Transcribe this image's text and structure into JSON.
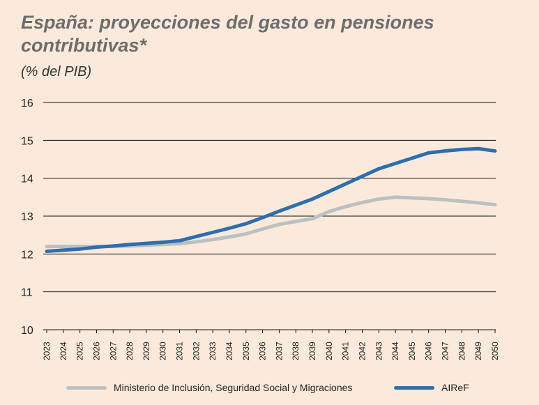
{
  "chart_data": {
    "type": "line",
    "title": "España: proyecciones del gasto en pensiones contributivas*",
    "subtitle": "(% del PIB)",
    "xlabel": "",
    "ylabel": "",
    "ylim": [
      10,
      16
    ],
    "yticks": [
      "10",
      "11",
      "12",
      "13",
      "14",
      "15",
      "16"
    ],
    "grid": true,
    "legend_position": "bottom",
    "x": [
      "2023",
      "2024",
      "2025",
      "2026",
      "2027",
      "2028",
      "2029",
      "2030",
      "2031",
      "2032",
      "2033",
      "2034",
      "2035",
      "2036",
      "2037",
      "2038",
      "2039",
      "2040",
      "2041",
      "2042",
      "2043",
      "2044",
      "2045",
      "2046",
      "2047",
      "2048",
      "2049",
      "2050"
    ],
    "series": [
      {
        "name": "Ministerio de Inclusión, Seguridad Social y Migraciones",
        "color": "#bcc0c1",
        "values": [
          12.2,
          12.2,
          12.2,
          12.2,
          12.2,
          12.21,
          12.23,
          12.25,
          12.27,
          12.32,
          12.38,
          12.45,
          12.53,
          12.66,
          12.78,
          12.86,
          12.93,
          13.12,
          13.25,
          13.36,
          13.45,
          13.5,
          13.48,
          13.46,
          13.43,
          13.39,
          13.35,
          13.3
        ]
      },
      {
        "name": "AIReF",
        "color": "#2e6eae",
        "values": [
          12.07,
          12.1,
          12.13,
          12.18,
          12.21,
          12.25,
          12.28,
          12.31,
          12.35,
          12.46,
          12.57,
          12.68,
          12.8,
          12.96,
          13.13,
          13.29,
          13.45,
          13.65,
          13.85,
          14.05,
          14.25,
          14.39,
          14.53,
          14.67,
          14.72,
          14.76,
          14.78,
          14.72
        ]
      }
    ]
  }
}
